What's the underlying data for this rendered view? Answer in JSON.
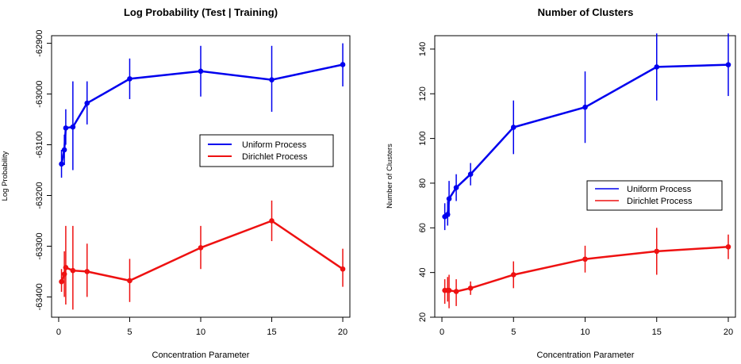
{
  "colors": {
    "uniform": "#0000ee",
    "dirichlet": "#ee1111",
    "axis": "#000000"
  },
  "chart_data": [
    {
      "type": "line",
      "title": "Log Probability (Test | Training)",
      "xlabel": "Concentration Parameter",
      "ylabel": "Log Probability",
      "xlim": [
        -0.5,
        20.5
      ],
      "ylim": [
        -63440,
        -62885
      ],
      "xticks": [
        0,
        5,
        10,
        15,
        20
      ],
      "yticks": [
        -62900,
        -63000,
        -63100,
        -63200,
        -63300,
        -63400
      ],
      "ytick_labels": [
        "-62900",
        "-63000",
        "-63100",
        "-63200",
        "-63300",
        "-63400"
      ],
      "ytick_rotation": "vertical",
      "grid": false,
      "legend_position": "right-middle",
      "series": [
        {
          "name": "Uniform Process",
          "color_key": "uniform",
          "x": [
            0.2,
            0.4,
            0.5,
            1,
            2,
            5,
            10,
            15,
            20
          ],
          "y": [
            -63138,
            -63110,
            -63067,
            -63065,
            -63018,
            -62970,
            -62955,
            -62972,
            -62942
          ],
          "err_low": [
            -63165,
            -63140,
            -63100,
            -63150,
            -63060,
            -63010,
            -63005,
            -63035,
            -62985
          ],
          "err_high": [
            -63110,
            -63080,
            -63030,
            -62975,
            -62975,
            -62930,
            -62905,
            -62905,
            -62900
          ]
        },
        {
          "name": "Dirichlet Process",
          "color_key": "dirichlet",
          "x": [
            0.2,
            0.4,
            0.5,
            1,
            2,
            5,
            10,
            15,
            20
          ],
          "y": [
            -63370,
            -63355,
            -63342,
            -63348,
            -63350,
            -63368,
            -63303,
            -63250,
            -63345
          ],
          "err_low": [
            -63390,
            -63400,
            -63415,
            -63425,
            -63400,
            -63410,
            -63345,
            -63290,
            -63380
          ],
          "err_high": [
            -63345,
            -63310,
            -63260,
            -63260,
            -63295,
            -63325,
            -63260,
            -63210,
            -63305
          ]
        }
      ]
    },
    {
      "type": "line",
      "title": "Number of Clusters",
      "xlabel": "Concentration Parameter",
      "ylabel": "Number of Clusters",
      "xlim": [
        -0.5,
        20.5
      ],
      "ylim": [
        20,
        146
      ],
      "xticks": [
        0,
        5,
        10,
        15,
        20
      ],
      "yticks": [
        20,
        40,
        60,
        80,
        100,
        120,
        140
      ],
      "ytick_labels": [
        "20",
        "40",
        "60",
        "80",
        "100",
        "120",
        "140"
      ],
      "ytick_rotation": "vertical",
      "grid": false,
      "legend_position": "right-middle",
      "series": [
        {
          "name": "Uniform Process",
          "color_key": "uniform",
          "x": [
            0.2,
            0.4,
            0.5,
            1,
            2,
            5,
            10,
            15,
            20
          ],
          "y": [
            65,
            66,
            73,
            78,
            84,
            105,
            114,
            132,
            133
          ],
          "err_low": [
            59,
            61,
            65,
            72,
            79,
            93,
            98,
            117,
            119
          ],
          "err_high": [
            71,
            72,
            81,
            84,
            89,
            117,
            130,
            147,
            147
          ]
        },
        {
          "name": "Dirichlet Process",
          "color_key": "dirichlet",
          "x": [
            0.2,
            0.4,
            0.5,
            1,
            2,
            5,
            10,
            15,
            20
          ],
          "y": [
            32,
            32,
            32,
            31.5,
            33,
            39,
            46,
            49.5,
            51.5
          ],
          "err_low": [
            26,
            27,
            24,
            25,
            30,
            33,
            40,
            39,
            46
          ],
          "err_high": [
            37,
            38,
            39,
            37,
            36,
            45,
            52,
            60,
            57
          ]
        }
      ]
    }
  ]
}
